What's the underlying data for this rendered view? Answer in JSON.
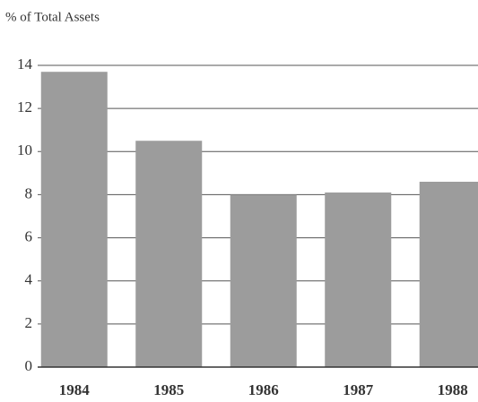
{
  "chart_data": {
    "type": "bar",
    "title": "% of Total Assets",
    "categories": [
      "1984",
      "1985",
      "1986",
      "1987",
      "1988"
    ],
    "values": [
      13.7,
      10.5,
      8.0,
      8.1,
      8.6
    ],
    "color": "#9c9c9c",
    "ylim": [
      0,
      14
    ],
    "yticks": [
      0,
      2,
      4,
      6,
      8,
      10,
      12,
      14
    ],
    "grid": true
  }
}
